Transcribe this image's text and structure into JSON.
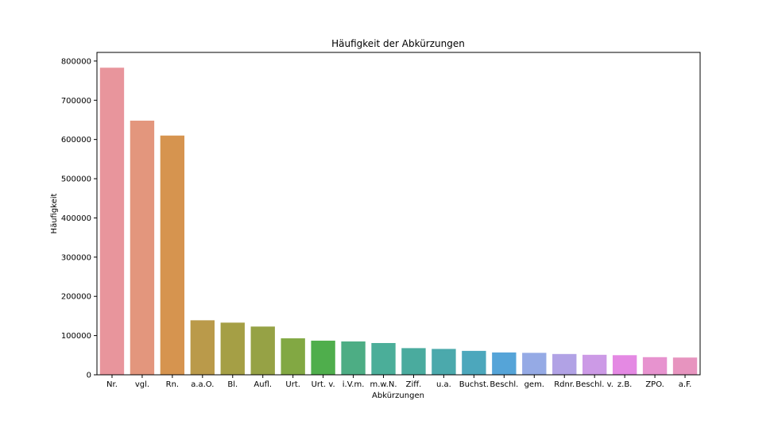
{
  "chart_data": {
    "type": "bar",
    "title": "Häufigkeit der Abkürzungen",
    "xlabel": "Abkürzungen",
    "ylabel": "Häufigkeit",
    "ylim": [
      0,
      822000
    ],
    "yticks": [
      0,
      100000,
      200000,
      300000,
      400000,
      500000,
      600000,
      700000,
      800000
    ],
    "ytick_labels": [
      "0",
      "100000",
      "200000",
      "300000",
      "400000",
      "500000",
      "600000",
      "700000",
      "800000"
    ],
    "grid": false,
    "legend": "none",
    "categories": [
      "Nr.",
      "vgl.",
      "Rn.",
      "a.a.O.",
      "Bl.",
      "Aufl.",
      "Urt.",
      "Urt. v.",
      "i.V.m.",
      "m.w.N.",
      "Ziff.",
      "u.a.",
      "Buchst.",
      "Beschl.",
      "gem.",
      "Rdnr.",
      "Beschl. v.",
      "z.B.",
      "ZPO.",
      "a.F."
    ],
    "values": [
      783000,
      648000,
      610000,
      139000,
      133000,
      123000,
      93000,
      87000,
      85000,
      81000,
      68000,
      66000,
      61000,
      57000,
      56000,
      53000,
      51000,
      50000,
      45000,
      44000
    ],
    "colors": [
      "#e8959c",
      "#e3967d",
      "#d6944f",
      "#ba9a4a",
      "#a59f45",
      "#96a245",
      "#82a843",
      "#4fae4c",
      "#4dad84",
      "#4bae99",
      "#4aab9e",
      "#4ba9ac",
      "#4ca7bc",
      "#55a4d8",
      "#95aae5",
      "#b1a2e5",
      "#cc9ae6",
      "#e489e3",
      "#e793cf",
      "#e794bf"
    ]
  }
}
